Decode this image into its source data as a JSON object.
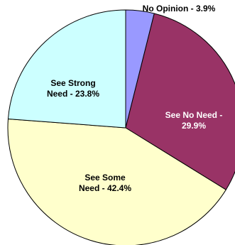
{
  "chart_data": {
    "type": "pie",
    "start_angle_deg": 0,
    "direction": "clockwise",
    "slices": [
      {
        "label": "No Opinion - 3.9%",
        "label_lines": [
          "No Opinion - 3.9%"
        ],
        "value": 3.9,
        "color": "#9999ff",
        "label_color": "#000000"
      },
      {
        "label": "See No Need - 29.9%",
        "label_lines": [
          "See No Need -",
          "29.9%"
        ],
        "value": 29.9,
        "color": "#993366",
        "label_color": "#ffffff"
      },
      {
        "label": "See Some Need - 42.4%",
        "label_lines": [
          "See Some",
          "Need - 42.4%"
        ],
        "value": 42.4,
        "color": "#ffffcc",
        "label_color": "#000000"
      },
      {
        "label": "See Strong Need - 23.8%",
        "label_lines": [
          "See Strong",
          "Need - 23.8%"
        ],
        "value": 23.8,
        "color": "#ccffff",
        "label_color": "#000000"
      }
    ]
  }
}
